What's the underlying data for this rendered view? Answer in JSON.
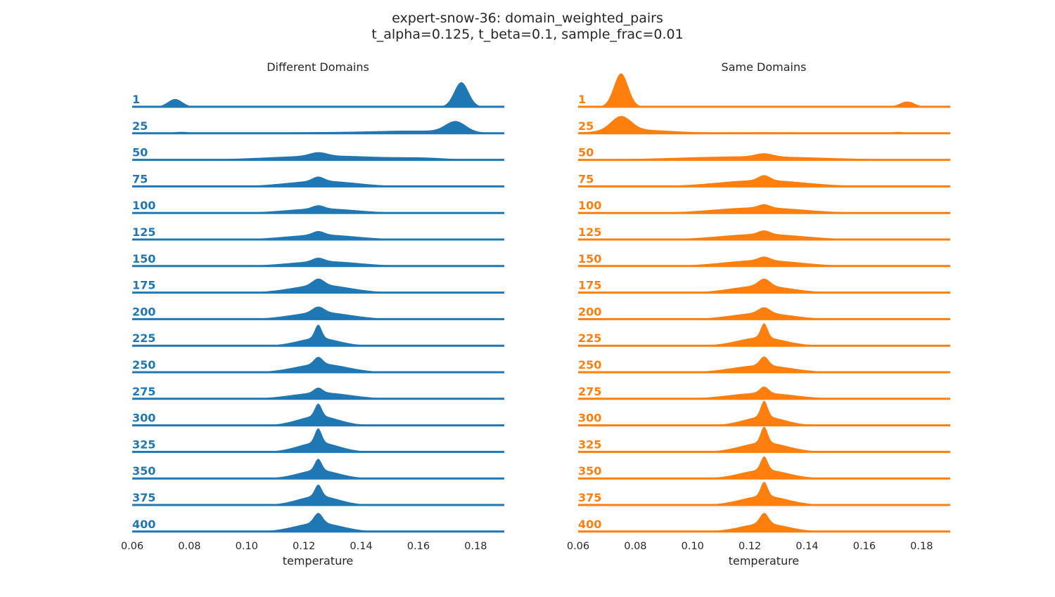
{
  "title_line1": "expert-snow-36: domain_weighted_pairs",
  "title_line2": "t_alpha=0.125, t_beta=0.1, sample_frac=0.01",
  "chart_data": {
    "type": "ridgeline",
    "xlabel": "temperature",
    "xlim": [
      0.06,
      0.19
    ],
    "xticks": [
      0.06,
      0.08,
      0.1,
      0.12,
      0.14,
      0.16,
      0.18
    ],
    "xtick_labels": [
      "0.06",
      "0.08",
      "0.10",
      "0.12",
      "0.14",
      "0.16",
      "0.18"
    ],
    "rows": [
      "1",
      "25",
      "50",
      "75",
      "100",
      "125",
      "150",
      "175",
      "200",
      "225",
      "250",
      "275",
      "300",
      "325",
      "350",
      "375",
      "400"
    ],
    "panels": [
      {
        "title": "Different Domains",
        "color": "#1f77b4",
        "densities": [
          [
            {
              "mu": 0.075,
              "sigma": 0.0025,
              "h": 0.22
            },
            {
              "mu": 0.175,
              "sigma": 0.0025,
              "h": 0.7
            }
          ],
          [
            {
              "mu": 0.077,
              "sigma": 0.003,
              "h": 0.04
            },
            {
              "mu": 0.125,
              "sigma": 0.02,
              "h": 0.03
            },
            {
              "mu": 0.173,
              "sigma": 0.0035,
              "h": 0.3
            },
            {
              "mu": 0.16,
              "sigma": 0.015,
              "h": 0.07
            }
          ],
          [
            {
              "mu": 0.125,
              "sigma": 0.003,
              "h": 0.1
            },
            {
              "mu": 0.128,
              "sigma": 0.02,
              "h": 0.12
            },
            {
              "mu": 0.162,
              "sigma": 0.008,
              "h": 0.04
            }
          ],
          [
            {
              "mu": 0.125,
              "sigma": 0.002,
              "h": 0.12
            },
            {
              "mu": 0.126,
              "sigma": 0.012,
              "h": 0.16
            }
          ],
          [
            {
              "mu": 0.125,
              "sigma": 0.002,
              "h": 0.09
            },
            {
              "mu": 0.126,
              "sigma": 0.012,
              "h": 0.13
            }
          ],
          [
            {
              "mu": 0.125,
              "sigma": 0.002,
              "h": 0.1
            },
            {
              "mu": 0.126,
              "sigma": 0.012,
              "h": 0.14
            }
          ],
          [
            {
              "mu": 0.125,
              "sigma": 0.002,
              "h": 0.1
            },
            {
              "mu": 0.127,
              "sigma": 0.012,
              "h": 0.14
            }
          ],
          [
            {
              "mu": 0.125,
              "sigma": 0.002,
              "h": 0.18
            },
            {
              "mu": 0.126,
              "sigma": 0.01,
              "h": 0.22
            }
          ],
          [
            {
              "mu": 0.125,
              "sigma": 0.002,
              "h": 0.16
            },
            {
              "mu": 0.126,
              "sigma": 0.01,
              "h": 0.2
            }
          ],
          [
            {
              "mu": 0.125,
              "sigma": 0.0012,
              "h": 0.38
            },
            {
              "mu": 0.125,
              "sigma": 0.007,
              "h": 0.22
            }
          ],
          [
            {
              "mu": 0.125,
              "sigma": 0.0015,
              "h": 0.2
            },
            {
              "mu": 0.126,
              "sigma": 0.009,
              "h": 0.24
            }
          ],
          [
            {
              "mu": 0.125,
              "sigma": 0.0015,
              "h": 0.14
            },
            {
              "mu": 0.126,
              "sigma": 0.01,
              "h": 0.18
            }
          ],
          [
            {
              "mu": 0.125,
              "sigma": 0.0012,
              "h": 0.35
            },
            {
              "mu": 0.125,
              "sigma": 0.007,
              "h": 0.27
            }
          ],
          [
            {
              "mu": 0.125,
              "sigma": 0.0012,
              "h": 0.4
            },
            {
              "mu": 0.125,
              "sigma": 0.007,
              "h": 0.27
            }
          ],
          [
            {
              "mu": 0.125,
              "sigma": 0.0012,
              "h": 0.32
            },
            {
              "mu": 0.125,
              "sigma": 0.007,
              "h": 0.24
            }
          ],
          [
            {
              "mu": 0.125,
              "sigma": 0.0012,
              "h": 0.32
            },
            {
              "mu": 0.125,
              "sigma": 0.007,
              "h": 0.26
            }
          ],
          [
            {
              "mu": 0.125,
              "sigma": 0.0015,
              "h": 0.28
            },
            {
              "mu": 0.125,
              "sigma": 0.008,
              "h": 0.25
            }
          ]
        ]
      },
      {
        "title": "Same Domains",
        "color": "#ff7f0e",
        "densities": [
          [
            {
              "mu": 0.075,
              "sigma": 0.0025,
              "h": 0.95
            },
            {
              "mu": 0.175,
              "sigma": 0.0025,
              "h": 0.15
            }
          ],
          [
            {
              "mu": 0.075,
              "sigma": 0.0035,
              "h": 0.4
            },
            {
              "mu": 0.08,
              "sigma": 0.012,
              "h": 0.1
            },
            {
              "mu": 0.125,
              "sigma": 0.02,
              "h": 0.03
            },
            {
              "mu": 0.172,
              "sigma": 0.002,
              "h": 0.04
            }
          ],
          [
            {
              "mu": 0.125,
              "sigma": 0.003,
              "h": 0.09
            },
            {
              "mu": 0.12,
              "sigma": 0.025,
              "h": 0.1
            }
          ],
          [
            {
              "mu": 0.125,
              "sigma": 0.002,
              "h": 0.14
            },
            {
              "mu": 0.124,
              "sigma": 0.015,
              "h": 0.18
            }
          ],
          [
            {
              "mu": 0.125,
              "sigma": 0.002,
              "h": 0.09
            },
            {
              "mu": 0.123,
              "sigma": 0.015,
              "h": 0.16
            }
          ],
          [
            {
              "mu": 0.125,
              "sigma": 0.002,
              "h": 0.1
            },
            {
              "mu": 0.124,
              "sigma": 0.014,
              "h": 0.16
            }
          ],
          [
            {
              "mu": 0.125,
              "sigma": 0.002,
              "h": 0.1
            },
            {
              "mu": 0.124,
              "sigma": 0.013,
              "h": 0.17
            }
          ],
          [
            {
              "mu": 0.125,
              "sigma": 0.002,
              "h": 0.2
            },
            {
              "mu": 0.124,
              "sigma": 0.01,
              "h": 0.2
            }
          ],
          [
            {
              "mu": 0.125,
              "sigma": 0.002,
              "h": 0.16
            },
            {
              "mu": 0.124,
              "sigma": 0.01,
              "h": 0.18
            }
          ],
          [
            {
              "mu": 0.125,
              "sigma": 0.0012,
              "h": 0.4
            },
            {
              "mu": 0.124,
              "sigma": 0.008,
              "h": 0.24
            }
          ],
          [
            {
              "mu": 0.125,
              "sigma": 0.0015,
              "h": 0.25
            },
            {
              "mu": 0.124,
              "sigma": 0.01,
              "h": 0.2
            }
          ],
          [
            {
              "mu": 0.125,
              "sigma": 0.0015,
              "h": 0.18
            },
            {
              "mu": 0.124,
              "sigma": 0.011,
              "h": 0.17
            }
          ],
          [
            {
              "mu": 0.125,
              "sigma": 0.0012,
              "h": 0.45
            },
            {
              "mu": 0.125,
              "sigma": 0.007,
              "h": 0.25
            }
          ],
          [
            {
              "mu": 0.125,
              "sigma": 0.0012,
              "h": 0.45
            },
            {
              "mu": 0.125,
              "sigma": 0.008,
              "h": 0.27
            }
          ],
          [
            {
              "mu": 0.125,
              "sigma": 0.0012,
              "h": 0.38
            },
            {
              "mu": 0.125,
              "sigma": 0.008,
              "h": 0.25
            }
          ],
          [
            {
              "mu": 0.125,
              "sigma": 0.0012,
              "h": 0.4
            },
            {
              "mu": 0.125,
              "sigma": 0.008,
              "h": 0.26
            }
          ],
          [
            {
              "mu": 0.125,
              "sigma": 0.0015,
              "h": 0.3
            },
            {
              "mu": 0.125,
              "sigma": 0.008,
              "h": 0.23
            }
          ]
        ]
      }
    ]
  }
}
